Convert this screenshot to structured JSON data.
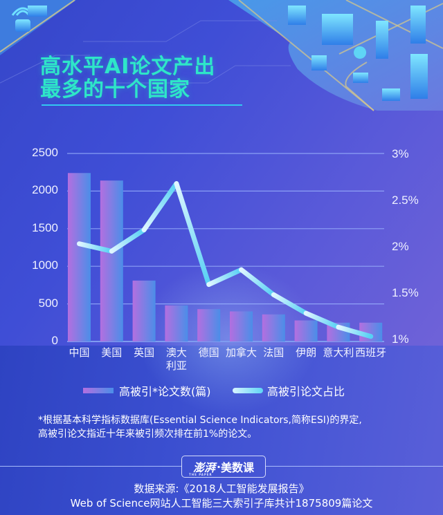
{
  "header": {
    "title_line1": "高水平AI论文产出",
    "title_line2": "最多的十个国家",
    "title_color": "#2ee6c8"
  },
  "chart_data": {
    "type": "bar+line",
    "title": "高水平AI论文产出最多的十个国家",
    "categories": [
      "中国",
      "美国",
      "英国",
      "澳大利亚",
      "德国",
      "加拿大",
      "法国",
      "伊朗",
      "意大利",
      "西班牙"
    ],
    "category_labels": [
      [
        "中国"
      ],
      [
        "美国"
      ],
      [
        "英国"
      ],
      [
        "澳大",
        "利亚"
      ],
      [
        "德国"
      ],
      [
        "加拿大"
      ],
      [
        "法国"
      ],
      [
        "伊朗"
      ],
      [
        "意大利"
      ],
      [
        "西班牙"
      ]
    ],
    "series": [
      {
        "name": "高被引*论文数(篇)",
        "type": "bar",
        "axis": "left",
        "values": [
          2240,
          2140,
          810,
          480,
          430,
          400,
          360,
          280,
          250,
          250
        ],
        "colors": [
          "#b36fe0",
          "#4b8ee8"
        ]
      },
      {
        "name": "高被引论文占比",
        "type": "line",
        "axis": "right",
        "unit": "%",
        "values": [
          2.04,
          1.96,
          2.19,
          2.69,
          1.6,
          1.76,
          1.49,
          1.29,
          1.14,
          1.04
        ],
        "colors": [
          "#d8f4ff",
          "#5fd5f5"
        ]
      }
    ],
    "left_axis": {
      "ticks": [
        "0",
        "500",
        "1000",
        "1500",
        "2000",
        "2500"
      ],
      "ylim": [
        0,
        2500
      ]
    },
    "right_axis": {
      "ticks": [
        "1%",
        "1.5%",
        "2%",
        "2.5%",
        "3%"
      ],
      "ylim": [
        1,
        3
      ]
    },
    "grid": true,
    "legend_position": "bottom"
  },
  "legend": {
    "bar_label": "高被引*论文数(篇)",
    "line_label": "高被引论文占比"
  },
  "note": {
    "line1": "*根据基本科学指标数据库(Essential Science Indicators,简称ESI)的界定,",
    "line2": "高被引论文指近十年来被引频次排在前1%的论文。"
  },
  "footer": {
    "brand_logo": "澎湃",
    "brand_logo_sub": "THE PAPER",
    "brand_sep": "·",
    "brand_name": "美数课",
    "source_line1": "数据来源:《2018人工智能发展报告》",
    "source_line2": "Web of Science网站人工智能三大索引子库共计1875809篇论文"
  }
}
